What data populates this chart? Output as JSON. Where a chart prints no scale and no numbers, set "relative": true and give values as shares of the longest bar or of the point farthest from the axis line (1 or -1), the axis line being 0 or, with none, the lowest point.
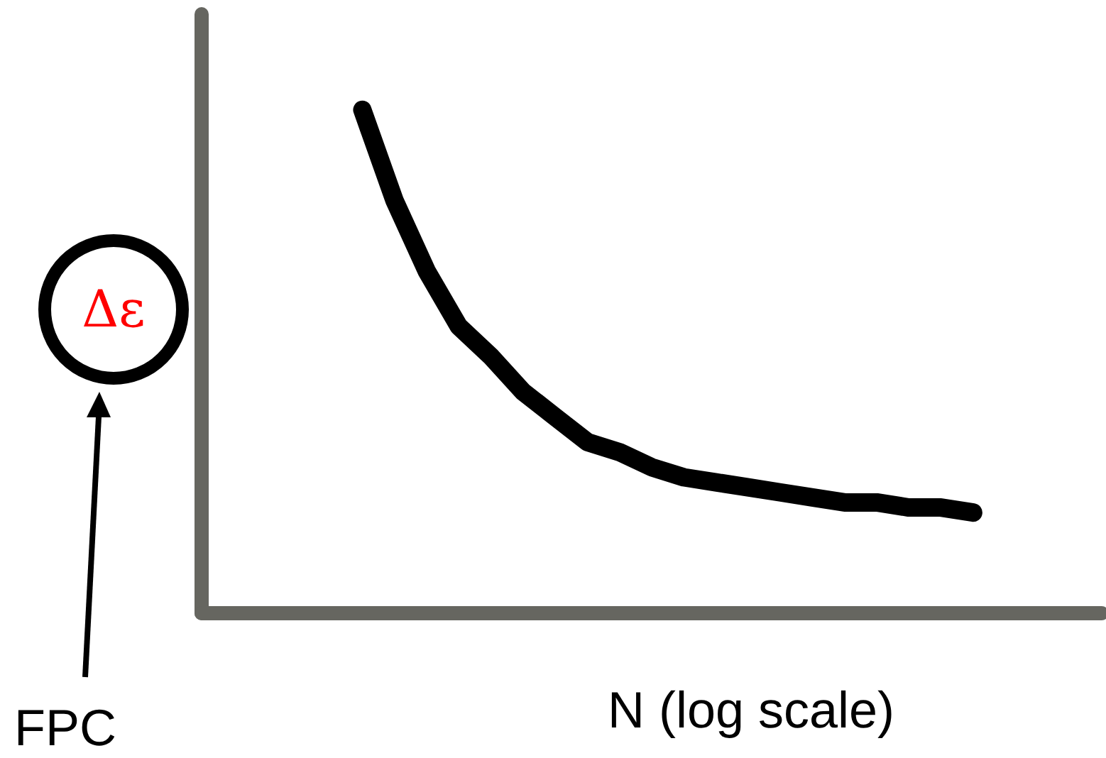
{
  "chart_data": {
    "type": "line",
    "relative": true,
    "xlabel": "N (log scale)",
    "ylabel": "Δε",
    "annotations": [
      "FPC"
    ],
    "categories": [
      null,
      null,
      null,
      null,
      null,
      null,
      null,
      null,
      null,
      null,
      null,
      null,
      null,
      null,
      null,
      null,
      null,
      null,
      null,
      null,
      null,
      null,
      null,
      null,
      null,
      null,
      null,
      null,
      null
    ],
    "series": [
      {
        "color": "#000000",
        "values": [
          null,
          null,
          null,
          null,
          null,
          1,
          0.82,
          0.68,
          0.57,
          0.51,
          0.44,
          0.39,
          0.34,
          0.32,
          0.29,
          0.27,
          0.26,
          0.25,
          0.24,
          0.23,
          0.22,
          0.22,
          0.21,
          0.21,
          0.2,
          null,
          null,
          null,
          null
        ]
      }
    ]
  }
}
